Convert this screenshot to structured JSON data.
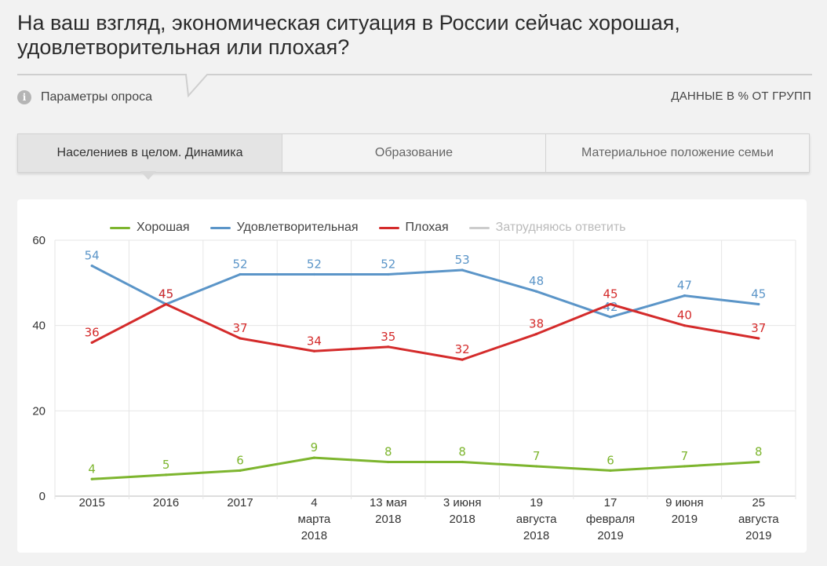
{
  "title": "На ваш взгляд, экономическая ситуация в России сейчас хорошая, удовлетворительная или плохая?",
  "survey_params_label": "Параметры опроса",
  "info_icon": "info-icon",
  "data_note": "ДАННЫЕ В % ОТ ГРУПП",
  "tabs": [
    {
      "label": "Населениев в целом. Динамика",
      "active": true
    },
    {
      "label": "Образование",
      "active": false
    },
    {
      "label": "Материальное положение семьи",
      "active": false
    }
  ],
  "legend": [
    {
      "label": "Хорошая",
      "color": "#7db52e",
      "muted": false
    },
    {
      "label": "Удовлетворительная",
      "color": "#5b95c8",
      "muted": false
    },
    {
      "label": "Плохая",
      "color": "#d42b2b",
      "muted": false
    },
    {
      "label": "Затрудняюсь ответить",
      "color": "#cccccc",
      "muted": true
    }
  ],
  "chart_data": {
    "type": "line",
    "categories": [
      [
        "2015"
      ],
      [
        "2016"
      ],
      [
        "2017"
      ],
      [
        "4",
        "марта",
        "2018"
      ],
      [
        "13 мая",
        "2018"
      ],
      [
        "3 июня",
        "2018"
      ],
      [
        "19",
        "августа",
        "2018"
      ],
      [
        "17",
        "февраля",
        "2019"
      ],
      [
        "9 июня",
        "2019"
      ],
      [
        "25",
        "августа",
        "2019"
      ]
    ],
    "series": [
      {
        "name": "Удовлетворительная",
        "color": "#5b95c8",
        "values": [
          54,
          45,
          52,
          52,
          52,
          53,
          48,
          42,
          47,
          45
        ]
      },
      {
        "name": "Плохая",
        "color": "#d42b2b",
        "values": [
          36,
          45,
          37,
          34,
          35,
          32,
          38,
          45,
          40,
          37
        ]
      },
      {
        "name": "Хорошая",
        "color": "#7db52e",
        "values": [
          4,
          5,
          6,
          9,
          8,
          8,
          7,
          6,
          7,
          8
        ]
      }
    ],
    "y_ticks": [
      0,
      20,
      40,
      60
    ],
    "ylim": [
      0,
      60
    ],
    "grid": true,
    "legend_position": "top"
  }
}
